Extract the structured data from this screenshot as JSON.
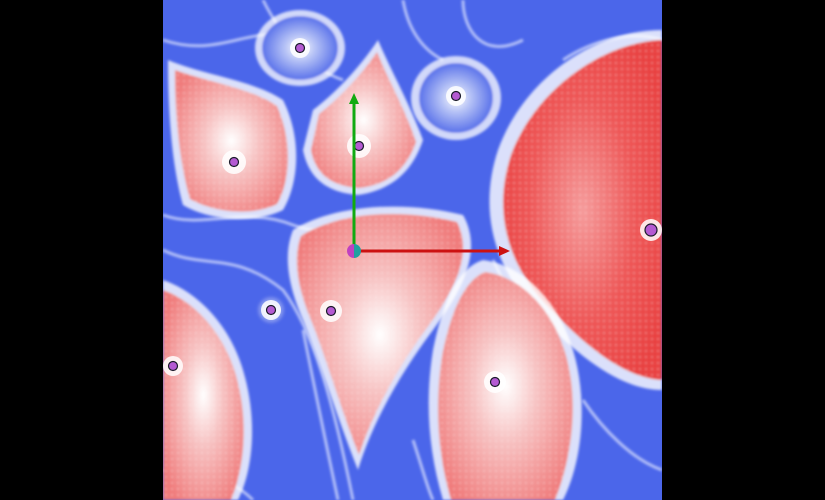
{
  "scene": {
    "background_color": "#000000",
    "colormap": {
      "low": "#3d5af0",
      "mid": "#ffffff",
      "high": "#ef4a4a"
    },
    "particles": [
      {
        "name": "particle-1",
        "color": "#b45ad2"
      },
      {
        "name": "particle-2",
        "color": "#b45ad2"
      },
      {
        "name": "particle-3",
        "color": "#b45ad2"
      },
      {
        "name": "particle-4",
        "color": "#b45ad2"
      },
      {
        "name": "particle-5",
        "color": "#b45ad2"
      },
      {
        "name": "particle-6",
        "color": "#b45ad2"
      },
      {
        "name": "particle-7",
        "color": "#b45ad2"
      },
      {
        "name": "particle-8",
        "color": "#b45ad2"
      },
      {
        "name": "particle-9",
        "color": "#b45ad2"
      }
    ],
    "gizmo": {
      "x_axis_color": "#cc1111",
      "y_axis_color": "#11aa11",
      "origin_colors": [
        "#c040c0",
        "#20a0a0"
      ]
    }
  }
}
